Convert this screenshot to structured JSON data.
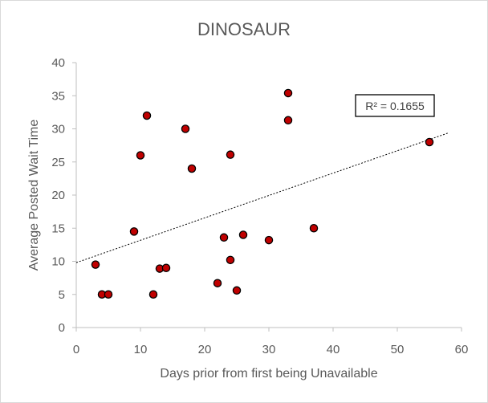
{
  "chart_data": {
    "type": "scatter",
    "title": "DINOSAUR",
    "xlabel": "Days prior from first being Unavailable",
    "ylabel": "Average Posted Wait Time",
    "xlim": [
      0,
      60
    ],
    "ylim": [
      0,
      40
    ],
    "x_ticks": [
      0,
      10,
      20,
      30,
      40,
      50,
      60
    ],
    "y_ticks": [
      0,
      5,
      10,
      15,
      20,
      25,
      30,
      35,
      40
    ],
    "grid": false,
    "legend": "none",
    "marker_color": "#c00000",
    "marker_edge": "#000000",
    "trendline": {
      "type": "linear",
      "r2_label": "R² = 0.1655",
      "x_range": [
        0,
        58
      ],
      "y_start": 9.8,
      "y_end": 29.4
    },
    "points": [
      {
        "x": 3,
        "y": 9.5
      },
      {
        "x": 4,
        "y": 5
      },
      {
        "x": 5,
        "y": 5
      },
      {
        "x": 9,
        "y": 14.5
      },
      {
        "x": 10,
        "y": 26
      },
      {
        "x": 11,
        "y": 32
      },
      {
        "x": 12,
        "y": 5
      },
      {
        "x": 13,
        "y": 8.9
      },
      {
        "x": 14,
        "y": 9
      },
      {
        "x": 17,
        "y": 30
      },
      {
        "x": 18,
        "y": 24
      },
      {
        "x": 22,
        "y": 6.7
      },
      {
        "x": 23,
        "y": 13.6
      },
      {
        "x": 24,
        "y": 26.1
      },
      {
        "x": 24,
        "y": 10.2
      },
      {
        "x": 25,
        "y": 5.6
      },
      {
        "x": 26,
        "y": 14
      },
      {
        "x": 30,
        "y": 13.2
      },
      {
        "x": 33,
        "y": 35.4
      },
      {
        "x": 33,
        "y": 31.3
      },
      {
        "x": 37,
        "y": 15
      },
      {
        "x": 55,
        "y": 28
      }
    ]
  }
}
